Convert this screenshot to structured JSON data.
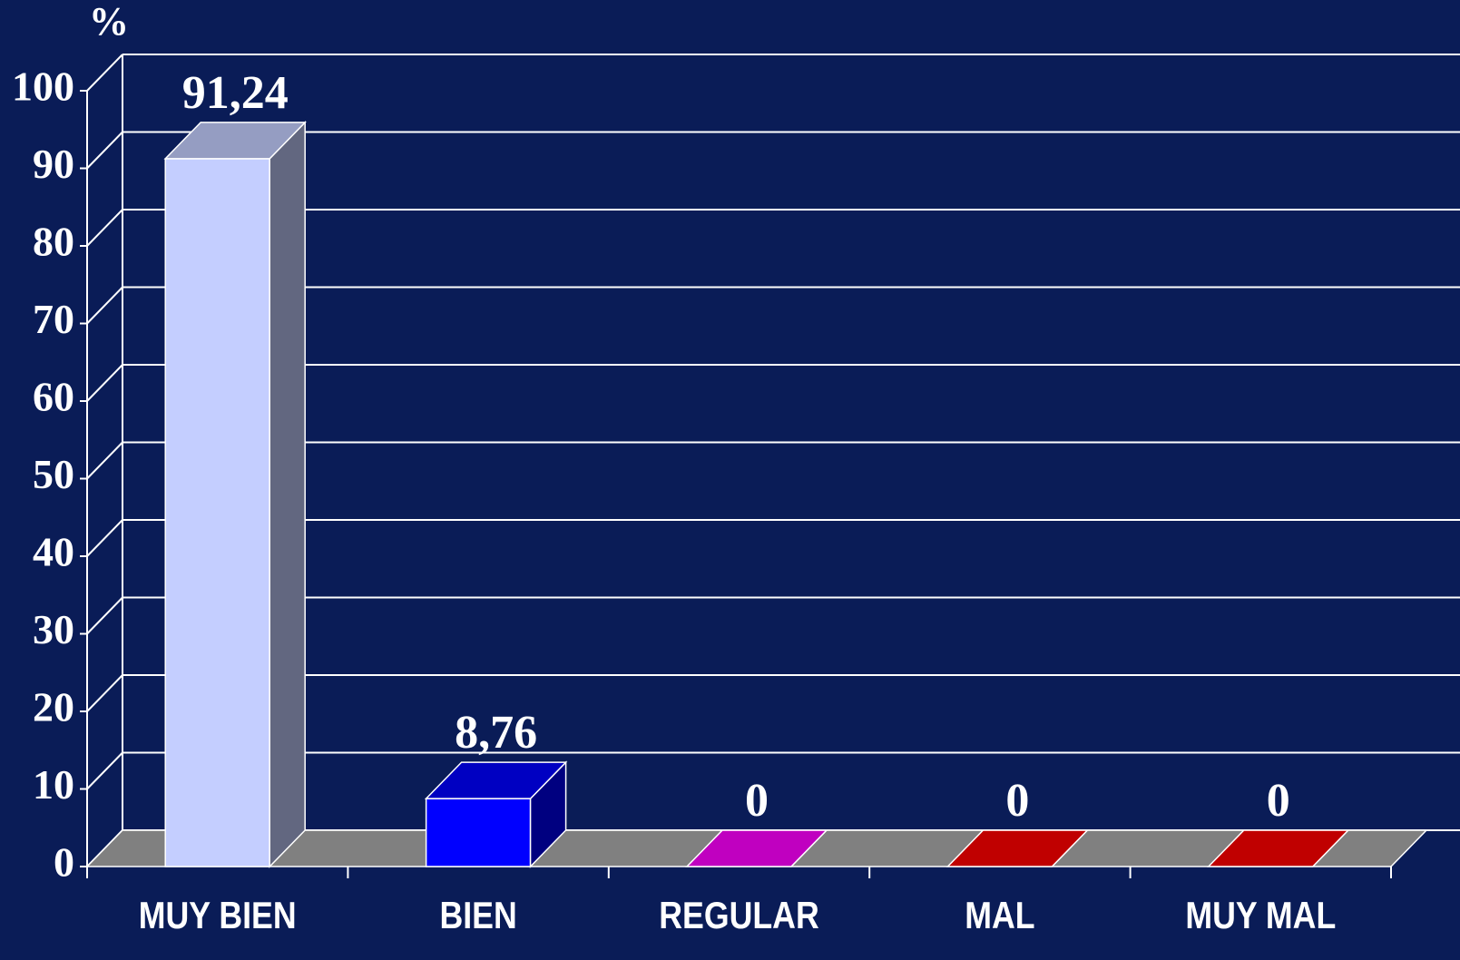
{
  "chart_data": {
    "type": "bar3d",
    "y_label": "%",
    "categories": [
      "MUY BIEN",
      "BIEN",
      "REGULAR",
      "MAL",
      "MUY MAL"
    ],
    "values": [
      91.24,
      8.76,
      0,
      0,
      0
    ],
    "value_labels": [
      "91,24",
      "8,76",
      "0",
      "0",
      "0"
    ],
    "colors": [
      "#c4ceff",
      "#0000ff",
      "#c000c0",
      "#c00000",
      "#c00000"
    ],
    "ylim": [
      0,
      100
    ],
    "yticks": [
      0,
      10,
      20,
      30,
      40,
      50,
      60,
      70,
      80,
      90,
      100
    ],
    "grid": true
  }
}
